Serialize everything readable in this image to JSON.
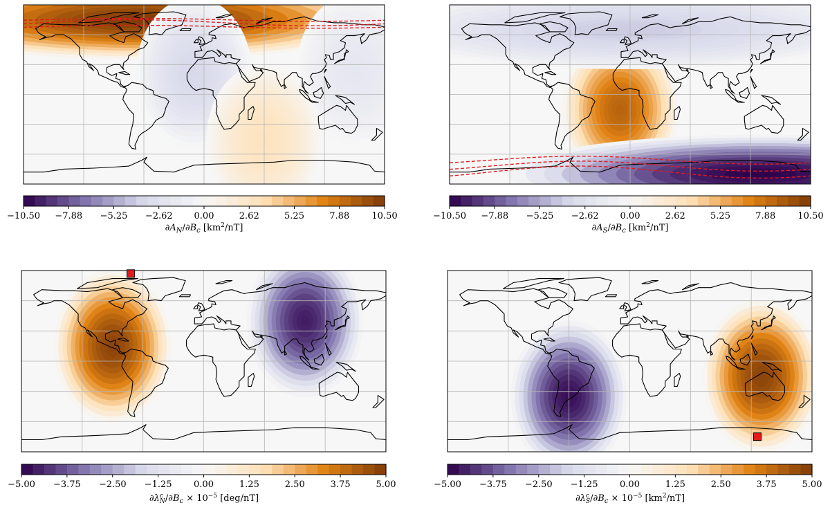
{
  "colors": {
    "orange_dark": "#7f3b08",
    "orange_mid": "#e08214",
    "orange_light": "#fee0b6",
    "white": "#f7f7f7",
    "purple_light": "#d8daeb",
    "purple_mid": "#8073ac",
    "purple_dark": "#2d004b",
    "red_line": "#e41a1c",
    "coast": "#000000"
  },
  "chart_data": [
    {
      "type": "heatmap",
      "map": "world",
      "colormap": "PuOr_r",
      "levels": 32,
      "range": [
        -10.5,
        10.5
      ],
      "colorbar_ticks": [
        "−10.50",
        "−7.88",
        "−5.25",
        "−2.62",
        "0.00",
        "2.62",
        "5.25",
        "7.88",
        "10.50"
      ],
      "colorbar_label": "∂A_N/∂B_c [km²/nT]",
      "features": [
        {
          "kind": "high",
          "lon": -60,
          "lat": 75,
          "value": 10.5
        },
        {
          "kind": "low",
          "lon": -10,
          "lat": 22,
          "value": -3.5
        },
        {
          "kind": "low",
          "lon": 150,
          "lat": 25,
          "value": -2.0
        },
        {
          "kind": "high",
          "lon": 60,
          "lat": -45,
          "value": 3.0
        }
      ],
      "overlays": [
        {
          "kind": "red-dashed-band",
          "hemisphere": "north"
        }
      ],
      "markers": []
    },
    {
      "type": "heatmap",
      "map": "world",
      "colormap": "PuOr_r",
      "levels": 32,
      "range": [
        -10.5,
        10.5
      ],
      "colorbar_ticks": [
        "−10.50",
        "−7.88",
        "−5.25",
        "−2.62",
        "0.00",
        "2.62",
        "5.25",
        "7.88",
        "10.50"
      ],
      "colorbar_label": "∂A_S/∂B_c [km²/nT]",
      "features": [
        {
          "kind": "high",
          "lon": -10,
          "lat": -15,
          "value": 8.5
        },
        {
          "kind": "low",
          "lon": 130,
          "lat": -80,
          "value": -10.5
        },
        {
          "kind": "low",
          "lon": 0,
          "lat": 65,
          "value": -4.0
        }
      ],
      "overlays": [
        {
          "kind": "red-dashed-band",
          "hemisphere": "south"
        }
      ],
      "markers": []
    },
    {
      "type": "heatmap",
      "map": "world",
      "colormap": "PuOr_r",
      "levels": 32,
      "range": [
        -5.0,
        5.0
      ],
      "colorbar_ticks": [
        "−5.00",
        "−3.75",
        "−2.50",
        "−1.25",
        "0.00",
        "1.25",
        "2.50",
        "3.75",
        "5.00"
      ],
      "colorbar_label": "∂λ_N^c/∂B_c × 10⁻⁵ [deg/nT]",
      "features": [
        {
          "kind": "high",
          "lon": -90,
          "lat": 15,
          "value": 4.8
        },
        {
          "kind": "low",
          "lon": 100,
          "lat": 40,
          "value": -4.6
        }
      ],
      "overlays": [],
      "markers": [
        {
          "kind": "red-square",
          "lon": -72,
          "lat": 87
        }
      ]
    },
    {
      "type": "heatmap",
      "map": "world",
      "colormap": "PuOr_r",
      "levels": 32,
      "range": [
        -5.0,
        5.0
      ],
      "colorbar_ticks": [
        "−5.00",
        "−3.75",
        "−2.50",
        "−1.25",
        "0.00",
        "1.25",
        "2.50",
        "3.75",
        "5.00"
      ],
      "colorbar_label": "∂λ_S^c/∂B_c × 10⁻⁵ [km²/nT]",
      "features": [
        {
          "kind": "high",
          "lon": 130,
          "lat": -15,
          "value": 4.8
        },
        {
          "kind": "low",
          "lon": -60,
          "lat": -35,
          "value": -4.8
        }
      ],
      "overlays": [],
      "markers": [
        {
          "kind": "red-square",
          "lon": 126,
          "lat": -75
        }
      ]
    }
  ]
}
